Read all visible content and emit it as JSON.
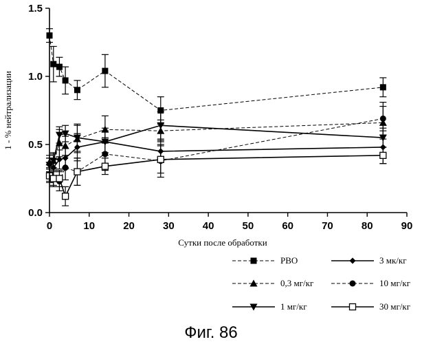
{
  "chart_data": {
    "type": "line",
    "title": "",
    "xlabel": "Сутки после обработки",
    "ylabel": "1 - % нейтрализации",
    "xlim": [
      0,
      90
    ],
    "ylim": [
      0.0,
      1.5
    ],
    "xticks": [
      0,
      10,
      20,
      30,
      40,
      50,
      60,
      70,
      80,
      90
    ],
    "yticks": [
      0.0,
      0.5,
      1.0,
      1.5
    ],
    "xtick_labels": [
      "0",
      "10",
      "20",
      "30",
      "40",
      "50",
      "60",
      "70",
      "80",
      "90"
    ],
    "ytick_labels": [
      "0.0",
      "0.5",
      "1.0",
      "1.5"
    ],
    "grid": false,
    "legend_position": "bottom-right",
    "caption": "Фиг. 86",
    "series": [
      {
        "name": "PBO",
        "marker": "square-filled",
        "line": "dashed",
        "points": [
          {
            "x": 0,
            "y": 1.3,
            "err": 0.05
          },
          {
            "x": 1,
            "y": 1.09,
            "err": 0.13
          },
          {
            "x": 2.5,
            "y": 1.07,
            "err": 0.07
          },
          {
            "x": 4,
            "y": 0.97,
            "err": 0.1
          },
          {
            "x": 7,
            "y": 0.9,
            "err": 0.07
          },
          {
            "x": 14,
            "y": 1.04,
            "err": 0.12
          },
          {
            "x": 28,
            "y": 0.75,
            "err": 0.1
          },
          {
            "x": 84,
            "y": 0.92,
            "err": 0.07
          }
        ]
      },
      {
        "name": "0,3 мг/кг",
        "marker": "triangle-up-filled",
        "line": "dashed",
        "points": [
          {
            "x": 0,
            "y": 0.37,
            "err": 0.05
          },
          {
            "x": 1,
            "y": 0.38,
            "err": 0.05
          },
          {
            "x": 2.5,
            "y": 0.51,
            "err": 0.1
          },
          {
            "x": 4,
            "y": 0.49,
            "err": 0.07
          },
          {
            "x": 7,
            "y": 0.54,
            "err": 0.1
          },
          {
            "x": 14,
            "y": 0.61,
            "err": 0.1
          },
          {
            "x": 28,
            "y": 0.6,
            "err": 0.08
          },
          {
            "x": 84,
            "y": 0.66,
            "err": 0.12
          }
        ]
      },
      {
        "name": "1 мг/кг",
        "marker": "triangle-down-filled",
        "line": "solid",
        "points": [
          {
            "x": 0,
            "y": 0.35,
            "err": 0.05
          },
          {
            "x": 1,
            "y": 0.38,
            "err": 0.06
          },
          {
            "x": 2.5,
            "y": 0.57,
            "err": 0.06
          },
          {
            "x": 4,
            "y": 0.58,
            "err": 0.06
          },
          {
            "x": 7,
            "y": 0.55,
            "err": 0.1
          },
          {
            "x": 14,
            "y": 0.52,
            "err": 0.1
          },
          {
            "x": 28,
            "y": 0.64,
            "err": 0.1
          },
          {
            "x": 84,
            "y": 0.55,
            "err": 0.07
          }
        ]
      },
      {
        "name": "3 мк/кг",
        "marker": "diamond-filled",
        "line": "solid",
        "points": [
          {
            "x": 0,
            "y": 0.35,
            "err": 0.05
          },
          {
            "x": 1,
            "y": 0.33,
            "err": 0.06
          },
          {
            "x": 2.5,
            "y": 0.39,
            "err": 0.07
          },
          {
            "x": 4,
            "y": 0.4,
            "err": 0.07
          },
          {
            "x": 7,
            "y": 0.48,
            "err": 0.1
          },
          {
            "x": 14,
            "y": 0.52,
            "err": 0.08
          },
          {
            "x": 28,
            "y": 0.45,
            "err": 0.08
          },
          {
            "x": 84,
            "y": 0.48,
            "err": 0.12
          }
        ]
      },
      {
        "name": "10 мг/кг",
        "marker": "circle-filled",
        "line": "dashed",
        "points": [
          {
            "x": 0,
            "y": 0.28,
            "err": 0.05
          },
          {
            "x": 1,
            "y": 0.25,
            "err": 0.06
          },
          {
            "x": 2.5,
            "y": 0.23,
            "err": 0.07
          },
          {
            "x": 4,
            "y": 0.33,
            "err": 0.09
          },
          {
            "x": 7,
            "y": 0.3,
            "err": 0.1
          },
          {
            "x": 14,
            "y": 0.43,
            "err": 0.12
          },
          {
            "x": 28,
            "y": 0.38,
            "err": 0.12
          },
          {
            "x": 84,
            "y": 0.69,
            "err": 0.12
          }
        ]
      },
      {
        "name": "30 мг/кг",
        "marker": "square-open",
        "line": "solid",
        "points": [
          {
            "x": 0,
            "y": 0.27,
            "err": 0.05
          },
          {
            "x": 1,
            "y": 0.25,
            "err": 0.05
          },
          {
            "x": 2.5,
            "y": 0.25,
            "err": 0.06
          },
          {
            "x": 4,
            "y": 0.12,
            "err": 0.07
          },
          {
            "x": 7,
            "y": 0.3,
            "err": 0.1
          },
          {
            "x": 14,
            "y": 0.34,
            "err": 0.06
          },
          {
            "x": 28,
            "y": 0.39,
            "err": 0.1
          },
          {
            "x": 84,
            "y": 0.42,
            "err": 0.06
          }
        ]
      }
    ]
  }
}
